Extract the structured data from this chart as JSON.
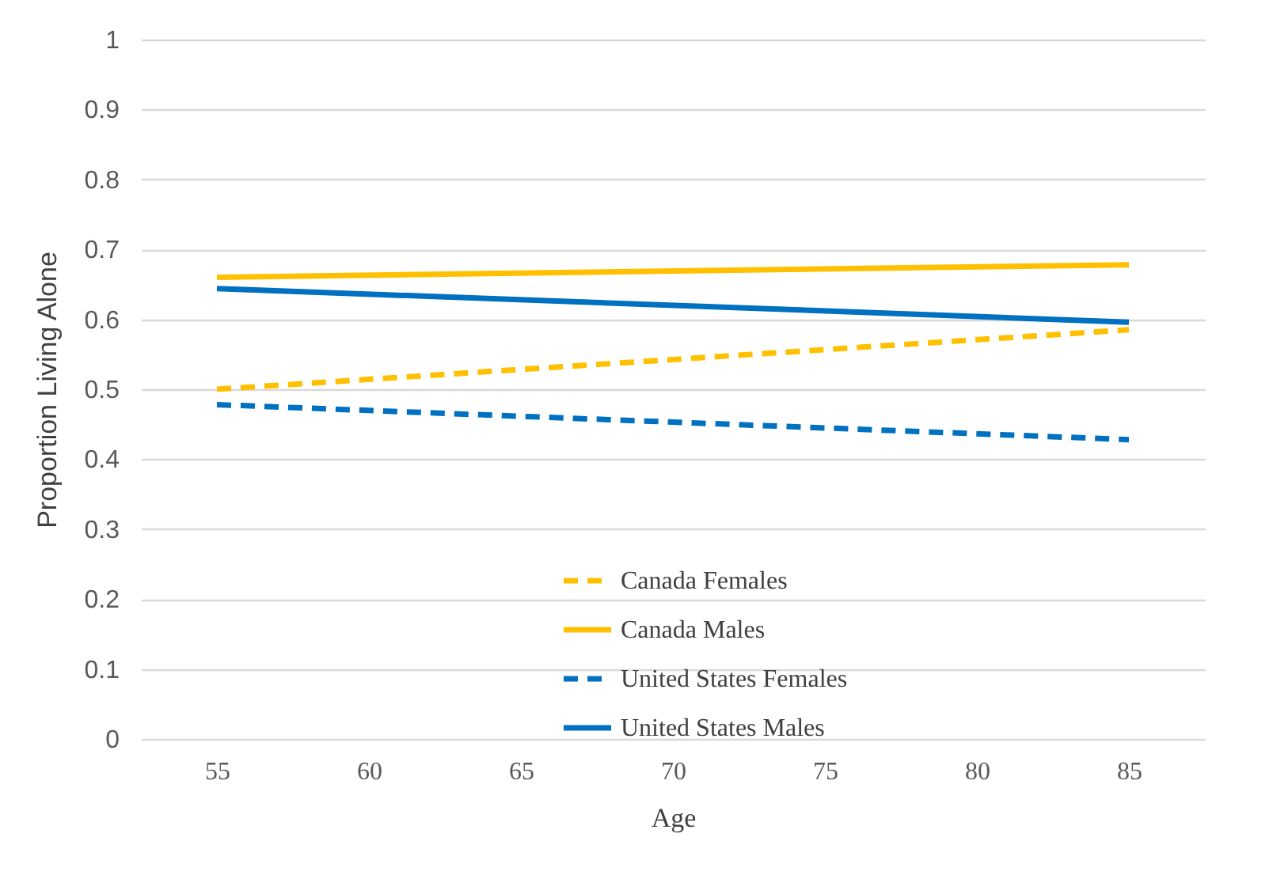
{
  "chart_data": {
    "type": "line",
    "xlabel": "Age",
    "ylabel": "Proportion Living Alone",
    "x": [
      55,
      85
    ],
    "xlim": [
      52.5,
      87.5
    ],
    "xticks": [
      55,
      60,
      65,
      70,
      75,
      80,
      85
    ],
    "ylim": [
      0,
      1
    ],
    "yticks": [
      0,
      0.1,
      0.2,
      0.3,
      0.4,
      0.5,
      0.6,
      0.7,
      0.8,
      0.9,
      1
    ],
    "grid": "y",
    "legend": "bottom",
    "marker": "none",
    "series": [
      {
        "name": "Canada Females",
        "color": "#ffc000",
        "values": [
          0.5,
          0.585
        ],
        "line_style": "dashed"
      },
      {
        "name": "Canada Males",
        "color": "#ffc000",
        "values": [
          0.66,
          0.678
        ],
        "line_style": "solid"
      },
      {
        "name": "United States Females",
        "color": "#0070c0",
        "values": [
          0.478,
          0.428
        ],
        "line_style": "dashed"
      },
      {
        "name": "United States Males",
        "color": "#0070c0",
        "values": [
          0.644,
          0.596
        ],
        "line_style": "solid"
      }
    ]
  }
}
